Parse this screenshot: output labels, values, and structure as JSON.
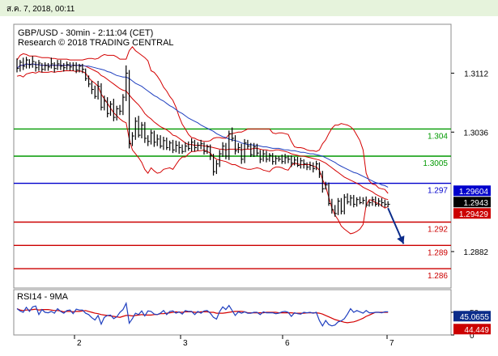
{
  "header": {
    "date": "ส.ค. 7, 2018, 00:11"
  },
  "chart_data": {
    "type": "candlestick",
    "title": "GBP/USD - 30min - 2:11:04 (CET)",
    "subtitle": "Research © 2018 TRADING CENTRAL",
    "ylim": [
      1.2835,
      1.3175
    ],
    "y_ticks": [
      "1.3112",
      "1.3036",
      "1.2882"
    ],
    "x_ticks": [
      "2",
      "3",
      "6",
      "7"
    ],
    "horizontal_levels": [
      {
        "value": 1.304,
        "label": "1.304",
        "color": "#009900"
      },
      {
        "value": 1.3005,
        "label": "1.3005",
        "color": "#009900"
      },
      {
        "value": 1.297,
        "label": "1.297",
        "color": "#0000cc"
      },
      {
        "value": 1.292,
        "label": "1.292",
        "color": "#cc0000"
      },
      {
        "value": 1.289,
        "label": "1.289",
        "color": "#cc0000"
      },
      {
        "value": 1.286,
        "label": "1.286",
        "color": "#cc0000"
      }
    ],
    "price_tags": [
      {
        "value": 1.29604,
        "label": "1.29604",
        "bg": "#0000cc"
      },
      {
        "value": 1.2943,
        "label": "1.2943",
        "bg": "#000000"
      },
      {
        "value": 1.29429,
        "label": "1.29429",
        "bg": "#cc0000"
      }
    ],
    "price_series": {
      "x": [
        0,
        4,
        8,
        12,
        16,
        20,
        24,
        28,
        32,
        36,
        40,
        44,
        48,
        52,
        56,
        60,
        64,
        68,
        72,
        76,
        80,
        84,
        88,
        92,
        96,
        100,
        104,
        108,
        112,
        116,
        120,
        124,
        128,
        132,
        136,
        140,
        144,
        148,
        152,
        156,
        160,
        164,
        168,
        172,
        176,
        180,
        184,
        188,
        192,
        196,
        200,
        204,
        208,
        212,
        216,
        220,
        224,
        228,
        232,
        236,
        240,
        244,
        248,
        252,
        256,
        260,
        264,
        268,
        272,
        276,
        280,
        284,
        288,
        292,
        296,
        300,
        304,
        308,
        312,
        316,
        320,
        324,
        328,
        332,
        336,
        340,
        344,
        348,
        352,
        356,
        360,
        364,
        368,
        372,
        376,
        380,
        384,
        388,
        392,
        396,
        400,
        404,
        408,
        412,
        416,
        420,
        424,
        428,
        432,
        436,
        440,
        444,
        448,
        452,
        456,
        460,
        464,
        468,
        472,
        476
      ],
      "close": [
        1.3118,
        1.3126,
        1.3121,
        1.3129,
        1.3123,
        1.3127,
        1.3119,
        1.3125,
        1.3117,
        1.3122,
        1.312,
        1.3124,
        1.3118,
        1.3124,
        1.3121,
        1.3119,
        1.3123,
        1.312,
        1.3122,
        1.3116,
        1.3121,
        1.3117,
        1.3105,
        1.3098,
        1.3091,
        1.3082,
        1.3095,
        1.3068,
        1.3076,
        1.306,
        1.3072,
        1.3055,
        1.3066,
        1.3063,
        1.3081,
        1.3112,
        1.3021,
        1.3031,
        1.305,
        1.3032,
        1.3045,
        1.3028,
        1.3024,
        1.3035,
        1.3023,
        1.3027,
        1.3018,
        1.3025,
        1.3016,
        1.3022,
        1.3013,
        1.3019,
        1.3016,
        1.3011,
        1.3018,
        1.3015,
        1.3023,
        1.3016,
        1.3019,
        1.3021,
        1.3011,
        1.3017,
        1.3006,
        1.2985,
        1.2995,
        1.3008,
        1.3018,
        1.3005,
        1.3034,
        1.3028,
        1.3012,
        1.3016,
        1.3001,
        1.3022,
        1.3018,
        1.3007,
        1.3017,
        1.3009,
        1.3001,
        1.3008,
        1.3001,
        1.3006,
        1.2998,
        1.3002,
        1.3001,
        1.2998,
        1.3003,
        1.3001,
        1.2996,
        1.3,
        1.2993,
        1.2999,
        1.2995,
        1.2991,
        1.2993,
        1.2989,
        1.2995,
        1.2982,
        1.2963,
        1.2968,
        1.2944,
        1.2936,
        1.2931,
        1.2947,
        1.2934,
        1.2952,
        1.2946,
        1.2951,
        1.2943,
        1.2949,
        1.2945,
        1.2948,
        1.2942,
        1.2945,
        1.2949,
        1.2943,
        1.2947,
        1.2945,
        1.2943,
        1.2943
      ],
      "high": [
        1.3131,
        1.3129,
        1.3132,
        1.3133,
        1.313,
        1.3134,
        1.3127,
        1.3129,
        1.3125,
        1.3126,
        1.3125,
        1.3132,
        1.3126,
        1.3129,
        1.3129,
        1.3125,
        1.3127,
        1.3126,
        1.3126,
        1.3126,
        1.3124,
        1.3124,
        1.3118,
        1.3109,
        1.3102,
        1.3096,
        1.3102,
        1.3099,
        1.3083,
        1.3081,
        1.3076,
        1.3079,
        1.307,
        1.3071,
        1.3085,
        1.3122,
        1.3116,
        1.3036,
        1.3055,
        1.3057,
        1.3049,
        1.3049,
        1.3032,
        1.3039,
        1.3038,
        1.3033,
        1.3032,
        1.303,
        1.3029,
        1.3025,
        1.3026,
        1.3025,
        1.3024,
        1.302,
        1.3023,
        1.3024,
        1.3028,
        1.3026,
        1.3023,
        1.3026,
        1.3023,
        1.302,
        1.302,
        1.3008,
        1.3,
        1.3013,
        1.3023,
        1.3022,
        1.3038,
        1.3042,
        1.3032,
        1.3022,
        1.3021,
        1.3027,
        1.3026,
        1.3022,
        1.3022,
        1.3021,
        1.3013,
        1.3013,
        1.3012,
        1.3009,
        1.3009,
        1.3006,
        1.3005,
        1.3007,
        1.3008,
        1.3006,
        1.3006,
        1.3004,
        1.3004,
        1.3003,
        1.3001,
        1.2997,
        1.2998,
        1.2997,
        1.2999,
        1.2997,
        1.2986,
        1.2972,
        1.2971,
        1.295,
        1.2942,
        1.2951,
        1.2951,
        1.2956,
        1.2957,
        1.2955,
        1.2955,
        1.2952,
        1.2953,
        1.2952,
        1.2953,
        1.2948,
        1.2953,
        1.2953,
        1.2951,
        1.2951,
        1.2949,
        1.2947
      ],
      "low": [
        1.3113,
        1.3114,
        1.3116,
        1.3118,
        1.3118,
        1.3119,
        1.3114,
        1.3115,
        1.3113,
        1.3115,
        1.3115,
        1.3118,
        1.3113,
        1.3116,
        1.3116,
        1.3114,
        1.3116,
        1.3115,
        1.3115,
        1.3112,
        1.3113,
        1.3112,
        1.3102,
        1.3094,
        1.3085,
        1.3079,
        1.3078,
        1.3064,
        1.3064,
        1.3055,
        1.3057,
        1.305,
        1.3051,
        1.3058,
        1.3058,
        1.3076,
        1.3015,
        1.3018,
        1.3026,
        1.3029,
        1.3028,
        1.3022,
        1.3018,
        1.302,
        1.3017,
        1.3018,
        1.3015,
        1.3013,
        1.3013,
        1.3012,
        1.3009,
        1.301,
        1.3008,
        1.3008,
        1.301,
        1.3012,
        1.3011,
        1.3011,
        1.3012,
        1.3014,
        1.3007,
        1.3008,
        1.3,
        1.298,
        1.2982,
        1.2991,
        1.3004,
        1.3001,
        1.3,
        1.3024,
        1.3007,
        1.3009,
        1.2995,
        1.2996,
        1.3014,
        1.3004,
        1.3004,
        1.3005,
        1.2996,
        1.2998,
        1.2997,
        1.2998,
        1.2994,
        1.2994,
        1.2998,
        1.2995,
        1.2995,
        1.2996,
        1.2991,
        1.2993,
        1.2991,
        1.2989,
        1.2989,
        1.2987,
        1.2987,
        1.2984,
        1.2987,
        1.2977,
        1.2958,
        1.2962,
        1.2941,
        1.2931,
        1.2927,
        1.2929,
        1.293,
        1.293,
        1.2943,
        1.2941,
        1.2939,
        1.294,
        1.2943,
        1.2943,
        1.2939,
        1.294,
        1.2941,
        1.294,
        1.294,
        1.294,
        1.2939,
        1.2939
      ]
    },
    "bollinger": {
      "upper": [
        1.3129,
        1.3135,
        1.3137,
        1.3136,
        1.3134,
        1.3134,
        1.3134,
        1.3133,
        1.3132,
        1.3132,
        1.3132,
        1.3131,
        1.3131,
        1.313,
        1.313,
        1.313,
        1.313,
        1.3129,
        1.3129,
        1.3129,
        1.3129,
        1.3129,
        1.313,
        1.3131,
        1.3131,
        1.313,
        1.3131,
        1.3134,
        1.3136,
        1.3135,
        1.3135,
        1.3135,
        1.3133,
        1.313,
        1.313,
        1.313,
        1.3141,
        1.3146,
        1.3141,
        1.3138,
        1.3135,
        1.3132,
        1.3128,
        1.3115,
        1.3113,
        1.3108,
        1.3102,
        1.3094,
        1.3089,
        1.3082,
        1.3077,
        1.3068,
        1.3056,
        1.3046,
        1.304,
        1.3033,
        1.3029,
        1.3028,
        1.3026,
        1.3025,
        1.3024,
        1.3024,
        1.3025,
        1.3028,
        1.3029,
        1.3029,
        1.3028,
        1.3028,
        1.3033,
        1.3034,
        1.3035,
        1.3036,
        1.3036,
        1.3038,
        1.304,
        1.304,
        1.304,
        1.304,
        1.304,
        1.304,
        1.304,
        1.304,
        1.3035,
        1.3034,
        1.3035,
        1.3035,
        1.3034,
        1.3033,
        1.3024,
        1.3017,
        1.3016,
        1.3016,
        1.3015,
        1.3013,
        1.3012,
        1.3012,
        1.3011,
        1.3013,
        1.3021,
        1.3026,
        1.3034,
        1.3041,
        1.3045,
        1.3045,
        1.3047,
        1.3046,
        1.3045,
        1.3043,
        1.3039,
        1.3032,
        1.3025,
        1.3013,
        1.2983,
        1.2973,
        1.2969,
        1.2968,
        1.2964,
        1.2963,
        1.2962,
        1.2957
      ],
      "mid": [
        1.3118,
        1.3122,
        1.3122,
        1.3124,
        1.3123,
        1.3124,
        1.3123,
        1.3123,
        1.3122,
        1.3122,
        1.3122,
        1.3122,
        1.3122,
        1.3122,
        1.3122,
        1.3122,
        1.3122,
        1.3122,
        1.3122,
        1.3122,
        1.3122,
        1.3122,
        1.3121,
        1.3119,
        1.3117,
        1.3115,
        1.3113,
        1.3109,
        1.3107,
        1.3104,
        1.3101,
        1.3098,
        1.3095,
        1.3092,
        1.309,
        1.3089,
        1.3084,
        1.3079,
        1.3075,
        1.3071,
        1.3066,
        1.306,
        1.3056,
        1.3053,
        1.3049,
        1.3046,
        1.3043,
        1.3041,
        1.3039,
        1.3036,
        1.3032,
        1.3031,
        1.3028,
        1.3025,
        1.3022,
        1.302,
        1.302,
        1.3019,
        1.3019,
        1.3019,
        1.3018,
        1.3018,
        1.3017,
        1.3016,
        1.3015,
        1.3014,
        1.3014,
        1.3013,
        1.3014,
        1.3014,
        1.3014,
        1.3014,
        1.3013,
        1.3014,
        1.3014,
        1.3014,
        1.3015,
        1.3015,
        1.3014,
        1.3013,
        1.3013,
        1.3012,
        1.3012,
        1.3013,
        1.3013,
        1.3012,
        1.3011,
        1.301,
        1.3008,
        1.3007,
        1.3006,
        1.3005,
        1.3005,
        1.3004,
        1.3003,
        1.3002,
        1.3001,
        1.3,
        1.2998,
        1.2996,
        1.2993,
        1.299,
        1.2987,
        1.2984,
        1.2981,
        1.2978,
        1.2976,
        1.2974,
        1.2972,
        1.297,
        1.2968,
        1.2965,
        1.2963,
        1.2961,
        1.2959,
        1.2956,
        1.2954,
        1.2952,
        1.295,
        1.2949
      ],
      "lower": [
        1.3108,
        1.3109,
        1.3107,
        1.3111,
        1.3112,
        1.3113,
        1.3112,
        1.3114,
        1.3113,
        1.3113,
        1.3113,
        1.3114,
        1.3113,
        1.3114,
        1.3114,
        1.3115,
        1.3115,
        1.3115,
        1.3115,
        1.3114,
        1.3115,
        1.3114,
        1.3112,
        1.3106,
        1.3102,
        1.3099,
        1.3095,
        1.3085,
        1.3079,
        1.3073,
        1.3067,
        1.3061,
        1.3057,
        1.3053,
        1.305,
        1.3048,
        1.3027,
        1.3013,
        1.3008,
        1.3003,
        1.2997,
        1.2988,
        1.2983,
        1.299,
        1.2986,
        1.2983,
        1.2984,
        1.2988,
        1.2989,
        1.299,
        1.2988,
        1.2994,
        1.3,
        1.3004,
        1.3004,
        1.3008,
        1.3011,
        1.3011,
        1.3012,
        1.3012,
        1.3013,
        1.3011,
        1.3009,
        1.3004,
        1.3001,
        1.3,
        1.2999,
        1.2998,
        1.2996,
        1.2994,
        1.2994,
        1.2992,
        1.299,
        1.2989,
        1.2988,
        1.2988,
        1.2989,
        1.299,
        1.2989,
        1.2987,
        1.2986,
        1.2985,
        1.2989,
        1.2991,
        1.2991,
        1.299,
        1.2988,
        1.2987,
        1.2993,
        1.2996,
        1.2995,
        1.2994,
        1.2994,
        1.2994,
        1.2994,
        1.2992,
        1.2991,
        1.2987,
        1.2975,
        1.2966,
        1.2952,
        1.2938,
        1.2929,
        1.2923,
        1.2915,
        1.2911,
        1.2908,
        1.2905,
        1.2906,
        1.2908,
        1.2911,
        1.2917,
        1.2942,
        1.2949,
        1.2948,
        1.2945,
        1.2944,
        1.2941,
        1.2938,
        1.294
      ]
    },
    "moving_average": [
      1.3118,
      1.3122,
      1.3122,
      1.3124,
      1.3123,
      1.3124,
      1.3123,
      1.3123,
      1.3122,
      1.3122,
      1.3122,
      1.3122,
      1.3122,
      1.3122,
      1.3122,
      1.3122,
      1.3122,
      1.3122,
      1.3122,
      1.3122,
      1.3122,
      1.3122,
      1.3121,
      1.3121,
      1.312,
      1.3119,
      1.3118,
      1.3117,
      1.3116,
      1.3114,
      1.3113,
      1.3111,
      1.3109,
      1.3108,
      1.3107,
      1.3107,
      1.3105,
      1.3102,
      1.3099,
      1.3097,
      1.3095,
      1.3092,
      1.3089,
      1.3086,
      1.3083,
      1.3081,
      1.3078,
      1.3076,
      1.3073,
      1.307,
      1.3068,
      1.3065,
      1.3062,
      1.306,
      1.3057,
      1.3054,
      1.3052,
      1.305,
      1.3048,
      1.3045,
      1.3043,
      1.3041,
      1.3039,
      1.3037,
      1.3034,
      1.3032,
      1.303,
      1.3029,
      1.3027,
      1.3026,
      1.3025,
      1.3024,
      1.3022,
      1.3021,
      1.302,
      1.302,
      1.3019,
      1.3019,
      1.3018,
      1.3017,
      1.3017,
      1.3016,
      1.3015,
      1.3015,
      1.3015,
      1.3014,
      1.3013,
      1.3013,
      1.3012,
      1.3012,
      1.3011,
      1.301,
      1.301,
      1.3009,
      1.3008,
      1.3008,
      1.3007,
      1.3006,
      1.3005,
      1.3003,
      1.3001,
      1.2999,
      1.2997,
      1.2994,
      1.2992,
      1.299,
      1.2988,
      1.2986,
      1.2984,
      1.2983,
      1.2981,
      1.2979,
      1.2977,
      1.2975,
      1.2973,
      1.2971,
      1.297,
      1.2968,
      1.2967,
      1.2965
    ],
    "forecast_arrow": {
      "from": [
        476,
        1.2938
      ],
      "to": [
        496,
        1.2892
      ],
      "color": "#0b2c8a"
    },
    "rsi": {
      "label": "RSI14 - 9MA",
      "ylim": [
        0,
        100
      ],
      "ticks": [
        "50",
        "0"
      ],
      "values": [
        58,
        53,
        50,
        61,
        52,
        62,
        64,
        45,
        56,
        50,
        49,
        52,
        48,
        58,
        52,
        48,
        54,
        55,
        47,
        57,
        55,
        55,
        48,
        45,
        38,
        33,
        43,
        24,
        39,
        43,
        44,
        36,
        40,
        50,
        56,
        70,
        26,
        36,
        48,
        45,
        53,
        42,
        53,
        52,
        46,
        45,
        48,
        54,
        45,
        52,
        53,
        48,
        51,
        46,
        54,
        52,
        52,
        45,
        52,
        48,
        53,
        54,
        48,
        39,
        35,
        52,
        62,
        56,
        65,
        54,
        43,
        51,
        48,
        51,
        48,
        48,
        50,
        50,
        45,
        51,
        49,
        49,
        49,
        47,
        48,
        51,
        52,
        50,
        41,
        49,
        47,
        46,
        50,
        49,
        50,
        48,
        50,
        32,
        20,
        32,
        23,
        20,
        22,
        29,
        31,
        36,
        46,
        58,
        50,
        54,
        51,
        48,
        54,
        49,
        49,
        50,
        50,
        49,
        51,
        51
      ],
      "ma": [
        58,
        55,
        54,
        55,
        55,
        56,
        57,
        55,
        56,
        56,
        56,
        55,
        54,
        54,
        53,
        51,
        52,
        52,
        51,
        52,
        52,
        53,
        54,
        52,
        50,
        48,
        47,
        45,
        44,
        43,
        42,
        41,
        40,
        39,
        41,
        43,
        43,
        42,
        43,
        44,
        45,
        44,
        44,
        44,
        45,
        45,
        47,
        47,
        48,
        49,
        50,
        51,
        50,
        50,
        51,
        51,
        51,
        50,
        50,
        51,
        51,
        51,
        50,
        50,
        48,
        48,
        48,
        49,
        50,
        51,
        52,
        52,
        52,
        51,
        49,
        49,
        49,
        49,
        49,
        49,
        50,
        50,
        50,
        50,
        49,
        49,
        49,
        49,
        49,
        48,
        48,
        48,
        48,
        49,
        49,
        49,
        49,
        48,
        46,
        43,
        40,
        37,
        34,
        32,
        30,
        28,
        27,
        28,
        29,
        31,
        34,
        37,
        41,
        44,
        47,
        50,
        50,
        50,
        50,
        50
      ],
      "tags": [
        {
          "value": 45.0655,
          "label": "45.0655",
          "bg": "#0b2c8a"
        },
        {
          "value": 44.449,
          "label": "44.449",
          "bg": "#cc0000"
        }
      ]
    }
  }
}
